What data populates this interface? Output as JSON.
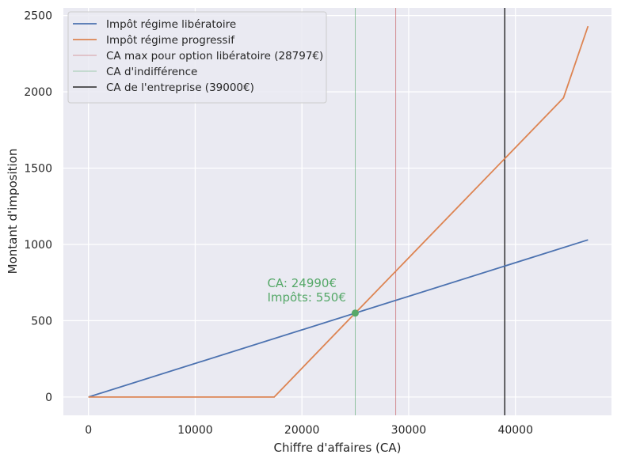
{
  "chart_data": {
    "type": "line",
    "xlabel": "Chiffre d'affaires (CA)",
    "ylabel": "Montant d'imposition",
    "xlim": [
      -2350,
      49000
    ],
    "ylim": [
      -120,
      2550
    ],
    "xticks": [
      0,
      10000,
      20000,
      30000,
      40000
    ],
    "yticks": [
      0,
      500,
      1000,
      1500,
      2000,
      2500
    ],
    "grid": true,
    "legend_position": "top-left",
    "series": [
      {
        "name": "Impôt régime libératoire",
        "color": "#4c72b0",
        "x": [
          0,
          46800
        ],
        "y": [
          0,
          1030
        ]
      },
      {
        "name": "Impôt régime progressif",
        "color": "#dd8452",
        "x": [
          0,
          17400,
          24990,
          44500,
          46800
        ],
        "y": [
          0,
          0,
          550,
          1960,
          2430
        ]
      }
    ],
    "vlines": [
      {
        "name": "CA max pour option libératoire (28797€)",
        "x": 28797,
        "color": "#c44e52",
        "width": 0.6
      },
      {
        "name": "CA d'indifférence",
        "x": 24990,
        "color": "#55a868",
        "width": 0.6
      },
      {
        "name": "CA de l'entreprise (39000€)",
        "x": 39000,
        "color": "#000000",
        "width": 1.2
      }
    ],
    "annotation": {
      "x": 24990,
      "y": 550,
      "color": "#55a868",
      "line1": "CA: 24990€",
      "line2": "Impôts: 550€"
    }
  }
}
